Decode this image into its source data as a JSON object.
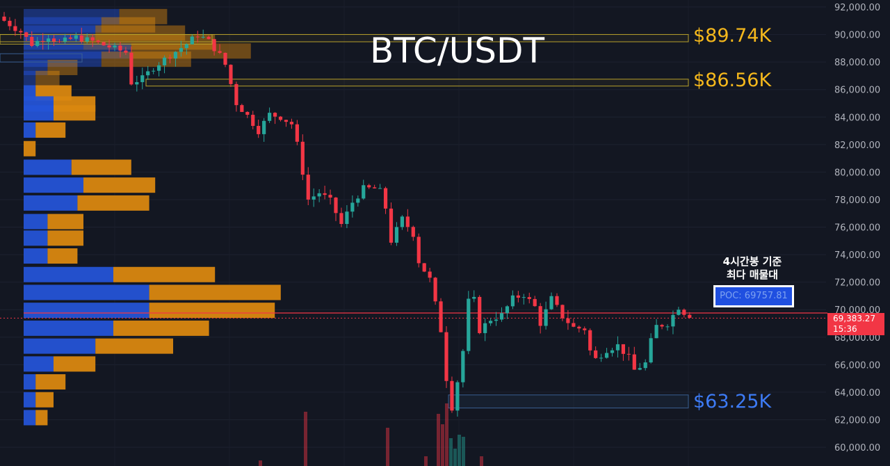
{
  "title": "BTC/USDT",
  "annotation": {
    "line1": "4시간봉 기준",
    "line2": "최다 매물대"
  },
  "poc_label": "POC: 69757.81",
  "current_price": {
    "price": "69,383.27",
    "countdown": "15:36",
    "value": 69383.27
  },
  "levels": [
    {
      "label": "$89.74K",
      "value": 89740,
      "color": "#f5b81c",
      "range": [
        89470,
        90000
      ]
    },
    {
      "label": "$86.56K",
      "value": 86560,
      "color": "#f5b81c",
      "range": [
        86250,
        86750
      ]
    },
    {
      "label": "$63.25K",
      "value": 63250,
      "color": "#3d7bf5",
      "range": [
        62850,
        63800
      ]
    }
  ],
  "colors": {
    "up": "#26a69a",
    "down": "#f23645",
    "background": "#131722",
    "profile_buy": "#2453d6",
    "profile_sell": "#d98710"
  },
  "chart_data": {
    "type": "candlestick",
    "title": "BTC/USDT",
    "interval": "4시간봉",
    "ylim": [
      59000,
      92300
    ],
    "y_ticks": [
      "92,000.00",
      "90,000.00",
      "88,000.00",
      "86,000.00",
      "84,000.00",
      "82,000.00",
      "80,000.00",
      "78,000.00",
      "76,000.00",
      "74,000.00",
      "72,000.00",
      "70,000.00",
      "68,000.00",
      "66,000.00",
      "64,000.00",
      "62,000.00",
      "60,000.00"
    ],
    "y_tick_values": [
      92000,
      90000,
      88000,
      86000,
      84000,
      82000,
      80000,
      78000,
      76000,
      74000,
      72000,
      70000,
      68000,
      66000,
      64000,
      62000,
      60000
    ],
    "poc": 69757.81,
    "last_price": 69383.27,
    "close_path": [
      [
        0,
        91000
      ],
      [
        3,
        90200
      ],
      [
        5,
        89300
      ],
      [
        8,
        89900
      ],
      [
        10,
        89400
      ],
      [
        13,
        89800
      ],
      [
        16,
        89500
      ],
      [
        19,
        89100
      ],
      [
        22,
        88700
      ],
      [
        23,
        86500
      ],
      [
        25,
        86800
      ],
      [
        27,
        87600
      ],
      [
        30,
        88500
      ],
      [
        33,
        89300
      ],
      [
        35,
        90000
      ],
      [
        37,
        89500
      ],
      [
        39,
        88500
      ],
      [
        40,
        87800
      ],
      [
        42,
        85000
      ],
      [
        44,
        84100
      ],
      [
        46,
        83000
      ],
      [
        48,
        84200
      ],
      [
        50,
        84000
      ],
      [
        52,
        83500
      ],
      [
        53,
        82000
      ],
      [
        55,
        78000
      ],
      [
        57,
        78500
      ],
      [
        59,
        77900
      ],
      [
        61,
        76200
      ],
      [
        63,
        77800
      ],
      [
        65,
        78800
      ],
      [
        67,
        78800
      ],
      [
        68,
        78600
      ],
      [
        69,
        77400
      ],
      [
        70,
        75000
      ],
      [
        72,
        76600
      ],
      [
        74,
        75500
      ],
      [
        75,
        73500
      ],
      [
        77,
        72200
      ],
      [
        78,
        70400
      ],
      [
        79,
        68500
      ],
      [
        80,
        65000
      ],
      [
        81,
        62900
      ],
      [
        82,
        64800
      ],
      [
        83,
        67000
      ],
      [
        84,
        70600
      ],
      [
        85,
        70700
      ],
      [
        86,
        68500
      ],
      [
        88,
        69300
      ],
      [
        90,
        69600
      ],
      [
        92,
        70800
      ],
      [
        94,
        71100
      ],
      [
        96,
        70200
      ],
      [
        97,
        69000
      ],
      [
        99,
        70800
      ],
      [
        101,
        69500
      ],
      [
        103,
        68700
      ],
      [
        105,
        68600
      ],
      [
        106,
        67000
      ],
      [
        107,
        66400
      ],
      [
        109,
        67100
      ],
      [
        111,
        67400
      ],
      [
        113,
        66500
      ],
      [
        114,
        65600
      ],
      [
        116,
        66100
      ],
      [
        117,
        67700
      ],
      [
        118,
        68800
      ],
      [
        120,
        69000
      ],
      [
        122,
        70200
      ],
      [
        123,
        69800
      ],
      [
        124,
        69600
      ]
    ],
    "volume_profile": [
      {
        "price": 91300,
        "buy": 16,
        "sell": 8
      },
      {
        "price": 90700,
        "buy": 13,
        "sell": 9
      },
      {
        "price": 90100,
        "buy": 12,
        "sell": 15
      },
      {
        "price": 89450,
        "buy": 10,
        "sell": 22
      },
      {
        "price": 88800,
        "buy": 18,
        "sell": 20
      },
      {
        "price": 88200,
        "buy": 13,
        "sell": 15
      },
      {
        "price": 87600,
        "buy": 4,
        "sell": 5
      },
      {
        "price": 86800,
        "buy": 2,
        "sell": 4
      },
      {
        "price": 85750,
        "buy": 2,
        "sell": 6
      },
      {
        "price": 84950,
        "buy": 5,
        "sell": 7
      },
      {
        "price": 84300,
        "buy": 5,
        "sell": 7
      },
      {
        "price": 83050,
        "buy": 2,
        "sell": 5
      },
      {
        "price": 81700,
        "buy": 0,
        "sell": 2
      },
      {
        "price": 80350,
        "buy": 8,
        "sell": 10
      },
      {
        "price": 79050,
        "buy": 10,
        "sell": 12
      },
      {
        "price": 77750,
        "buy": 9,
        "sell": 12
      },
      {
        "price": 76400,
        "buy": 4,
        "sell": 6
      },
      {
        "price": 75200,
        "buy": 4,
        "sell": 6
      },
      {
        "price": 73900,
        "buy": 4,
        "sell": 5
      },
      {
        "price": 72550,
        "buy": 15,
        "sell": 17
      },
      {
        "price": 71250,
        "buy": 21,
        "sell": 22
      },
      {
        "price": 69950,
        "buy": 21,
        "sell": 21
      },
      {
        "price": 68650,
        "buy": 15,
        "sell": 16
      },
      {
        "price": 67350,
        "buy": 12,
        "sell": 13
      },
      {
        "price": 66050,
        "buy": 5,
        "sell": 7
      },
      {
        "price": 64750,
        "buy": 2,
        "sell": 5
      },
      {
        "price": 63450,
        "buy": 2,
        "sell": 3
      },
      {
        "price": 62150,
        "buy": 2,
        "sell": 2
      }
    ]
  }
}
